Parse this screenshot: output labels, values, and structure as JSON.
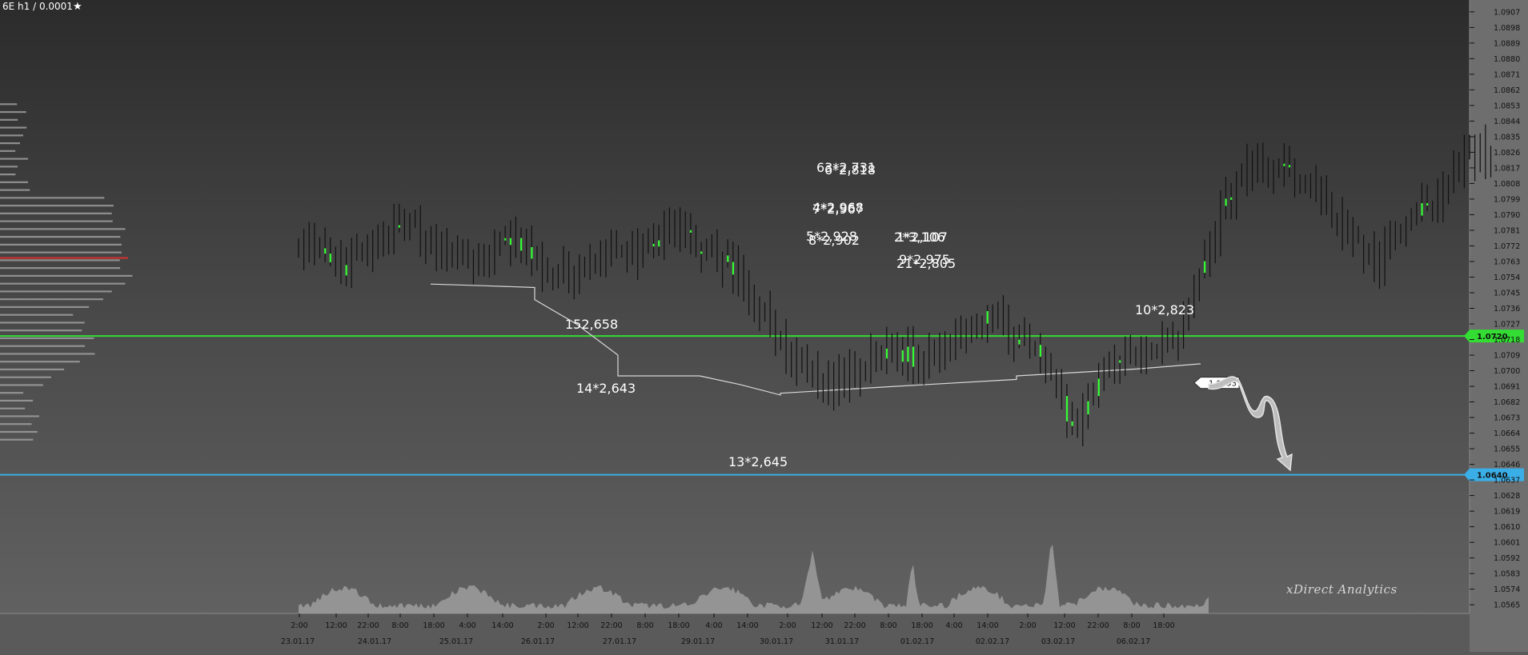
{
  "header": {
    "symbol_label": "6E h1 / 0.0001",
    "star_icon": "star-icon"
  },
  "watermark": "xDirect Analytics",
  "colors": {
    "background_top": "#2b2b2b",
    "background_bottom": "#616161",
    "candle": "#111111",
    "candle_bull": "#33ff33",
    "support_line": "#33dd33",
    "target_line": "#3aaee6",
    "vwap_line": "#d8d8d8",
    "profile_poc": "#c83232",
    "text": "#ffffff"
  },
  "chart_data": {
    "type": "ohlc",
    "ylim": [
      1.056,
      1.0912
    ],
    "y_ticks": [
      "1.0907",
      "1.0898",
      "1.0889",
      "1.0880",
      "1.0871",
      "1.0862",
      "1.0853",
      "1.0844",
      "1.0835",
      "1.0826",
      "1.0817",
      "1.0808",
      "1.0799",
      "1.0790",
      "1.0781",
      "1.0772",
      "1.0763",
      "1.0754",
      "1.0745",
      "1.0736",
      "1.0727",
      "1.0718",
      "1.0709",
      "1.0700",
      "1.0691",
      "1.0682",
      "1.0673",
      "1.0664",
      "1.0655",
      "1.0646",
      "1.0637",
      "1.0628",
      "1.0619",
      "1.0610",
      "1.0601",
      "1.0592",
      "1.0583",
      "1.0574",
      "1.0565"
    ],
    "x_time_labels": [
      "2:00",
      "12:00",
      "22:00",
      "8:00",
      "18:00",
      "4:00",
      "14:00",
      "2:00",
      "12:00",
      "22:00",
      "8:00",
      "18:00",
      "4:00",
      "14:00",
      "2:00",
      "12:00",
      "22:00",
      "8:00",
      "18:00",
      "4:00",
      "14:00",
      "2:00",
      "12:00",
      "22:00",
      "8:00",
      "18:00"
    ],
    "x_date_labels": [
      "23.01.17",
      "24.01.17",
      "25.01.17",
      "26.01.17",
      "27.01.17",
      "29.01.17",
      "30.01.17",
      "31.01.17",
      "01.02.17",
      "02.02.17",
      "03.02.17",
      "06.02.17"
    ],
    "bars_count": 226,
    "price_anchors": [
      [
        0,
        1.0774
      ],
      [
        8,
        1.0757
      ],
      [
        16,
        1.0774
      ],
      [
        22,
        1.0785
      ],
      [
        28,
        1.0768
      ],
      [
        34,
        1.0761
      ],
      [
        40,
        1.0776
      ],
      [
        48,
        1.0754
      ],
      [
        56,
        1.0763
      ],
      [
        64,
        1.077
      ],
      [
        70,
        1.0781
      ],
      [
        76,
        1.0772
      ],
      [
        82,
        1.0759
      ],
      [
        88,
        1.073
      ],
      [
        94,
        1.07
      ],
      [
        100,
        1.0691
      ],
      [
        106,
        1.07
      ],
      [
        112,
        1.0712
      ],
      [
        118,
        1.0705
      ],
      [
        124,
        1.072
      ],
      [
        130,
        1.0734
      ],
      [
        136,
        1.0718
      ],
      [
        142,
        1.07
      ],
      [
        146,
        1.0664
      ],
      [
        150,
        1.0691
      ],
      [
        154,
        1.0709
      ],
      [
        160,
        1.0714
      ],
      [
        166,
        1.0718
      ],
      [
        170,
        1.0754
      ],
      [
        174,
        1.079
      ],
      [
        178,
        1.0815
      ],
      [
        184,
        1.0817
      ],
      [
        190,
        1.081
      ],
      [
        196,
        1.079
      ],
      [
        200,
        1.077
      ],
      [
        204,
        1.0763
      ],
      [
        208,
        1.0781
      ],
      [
        212,
        1.0794
      ],
      [
        216,
        1.0803
      ],
      [
        220,
        1.0826
      ],
      [
        226,
        1.0826
      ]
    ],
    "levels": [
      {
        "name": "support",
        "value": 1.072,
        "label": "1.0720",
        "color": "#33dd33"
      },
      {
        "name": "target",
        "value": 1.064,
        "label": "1.0640",
        "color": "#3aaee6"
      }
    ],
    "current_price_label": "1.0693",
    "vwap_segments": [
      [
        [
          1.075,
          1.0749,
          1.0748
        ],
        [
          1.0741,
          1.0727,
          1.0709
        ],
        [
          1.0697,
          1.0697,
          1.0697
        ]
      ],
      [
        [
          1.0697,
          1.0692,
          1.0686
        ],
        [
          1.0687,
          1.0691,
          1.0695
        ],
        [
          1.0697,
          1.0701,
          1.0704
        ]
      ]
    ],
    "annotations": [
      "152,658",
      "14*2,643",
      "13*2,645",
      "63*2,731",
      "6*2,818",
      "7*2,967",
      "4*2,968",
      "5*2,928",
      "8*2,902",
      "2*3,106",
      "1*2,107",
      "9*2,975",
      "21*2,805",
      "10*2,823"
    ]
  }
}
